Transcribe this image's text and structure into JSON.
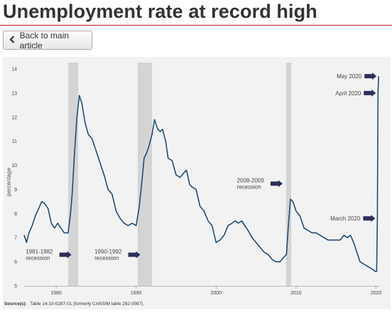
{
  "page": {
    "title": "Unemployment rate at record high"
  },
  "back_button": {
    "label": "Back to main article",
    "icon": "chevron-left-icon"
  },
  "chart_data": {
    "type": "line",
    "title": "",
    "xlabel": "",
    "ylabel": "percentage",
    "xlim": [
      1976,
      2020.4
    ],
    "ylim": [
      5,
      14
    ],
    "x_ticks": [
      1980,
      1990,
      2000,
      2010,
      2020
    ],
    "y_ticks": [
      5,
      6,
      7,
      8,
      9,
      10,
      11,
      12,
      13,
      14
    ],
    "grid": false,
    "line_color": "#1f4e79",
    "shade_color": "#d4d4d4",
    "arrow_color": "#2a3058",
    "recessions": [
      {
        "start": 1981.5,
        "end": 1982.75,
        "label_lines": [
          "1981-1982",
          "recession"
        ],
        "label_x": 1976.2,
        "label_y": 6.35
      },
      {
        "start": 1990.2,
        "end": 1992.0,
        "label_lines": [
          "1990-1992",
          "recession"
        ],
        "label_x": 1984.8,
        "label_y": 6.35
      },
      {
        "start": 2008.75,
        "end": 2009.4,
        "label_lines": [
          "2008-2009",
          "recession"
        ],
        "label_x": 2002.6,
        "label_y": 9.3
      }
    ],
    "annotations": [
      {
        "label": "May 2020",
        "x": 2020.33,
        "y": 13.7
      },
      {
        "label": "April 2020",
        "x": 2020.25,
        "y": 13.0
      },
      {
        "label": "March 2020",
        "x": 2020.17,
        "y": 7.8
      }
    ],
    "series": [
      {
        "x": [
          1976.0,
          1976.3,
          1976.6,
          1977.0,
          1977.4,
          1977.8,
          1978.2,
          1978.6,
          1979.0,
          1979.4,
          1979.8,
          1980.2,
          1980.6,
          1981.0,
          1981.5,
          1981.8,
          1982.0,
          1982.3,
          1982.6,
          1982.9,
          1983.2,
          1983.6,
          1984.0,
          1984.5,
          1985.0,
          1985.5,
          1986.0,
          1986.5,
          1987.0,
          1987.5,
          1988.0,
          1988.5,
          1989.0,
          1989.5,
          1990.0,
          1990.4,
          1990.8,
          1991.0,
          1991.3,
          1991.6,
          1992.0,
          1992.3,
          1992.7,
          1993.0,
          1993.3,
          1993.7,
          1994.0,
          1994.5,
          1995.0,
          1995.5,
          1996.0,
          1996.3,
          1996.7,
          1997.0,
          1997.5,
          1998.0,
          1998.5,
          1999.0,
          1999.5,
          2000.0,
          2000.5,
          2001.0,
          2001.5,
          2002.0,
          2002.4,
          2002.8,
          2003.2,
          2003.6,
          2004.0,
          2004.5,
          2005.0,
          2005.5,
          2006.0,
          2006.5,
          2007.0,
          2007.5,
          2008.0,
          2008.5,
          2008.8,
          2009.0,
          2009.3,
          2009.6,
          2010.0,
          2010.5,
          2011.0,
          2011.5,
          2012.0,
          2012.5,
          2013.0,
          2013.5,
          2014.0,
          2014.5,
          2015.0,
          2015.5,
          2016.0,
          2016.4,
          2016.8,
          2017.2,
          2017.6,
          2018.0,
          2018.5,
          2019.0,
          2019.5,
          2019.9,
          2020.08,
          2020.17,
          2020.25,
          2020.33
        ],
        "values": [
          7.1,
          6.8,
          7.2,
          7.5,
          7.9,
          8.2,
          8.5,
          8.4,
          8.2,
          7.6,
          7.4,
          7.6,
          7.4,
          7.2,
          7.2,
          8.0,
          8.8,
          10.5,
          12.0,
          12.9,
          12.6,
          11.8,
          11.3,
          11.1,
          10.6,
          10.1,
          9.6,
          9.0,
          8.8,
          8.1,
          7.8,
          7.6,
          7.5,
          7.6,
          7.5,
          8.3,
          9.6,
          10.3,
          10.5,
          10.8,
          11.3,
          11.9,
          11.5,
          11.4,
          11.5,
          11.0,
          10.3,
          10.2,
          9.6,
          9.5,
          9.7,
          9.8,
          9.2,
          9.1,
          9.0,
          8.3,
          8.1,
          7.7,
          7.5,
          6.8,
          6.9,
          7.1,
          7.5,
          7.6,
          7.7,
          7.6,
          7.7,
          7.5,
          7.3,
          7.0,
          6.8,
          6.6,
          6.4,
          6.3,
          6.1,
          6.0,
          6.0,
          6.2,
          6.3,
          7.3,
          8.6,
          8.5,
          8.1,
          7.9,
          7.4,
          7.3,
          7.2,
          7.2,
          7.1,
          7.0,
          6.9,
          6.9,
          6.9,
          6.9,
          7.1,
          7.0,
          7.1,
          6.8,
          6.4,
          6.0,
          5.9,
          5.8,
          5.7,
          5.6,
          5.6,
          7.8,
          13.0,
          13.7
        ]
      }
    ]
  },
  "source_note": {
    "label": "Source(s):",
    "text": "Table 14-10-0287-01 (formerly CANSIM table 282-0087)."
  }
}
